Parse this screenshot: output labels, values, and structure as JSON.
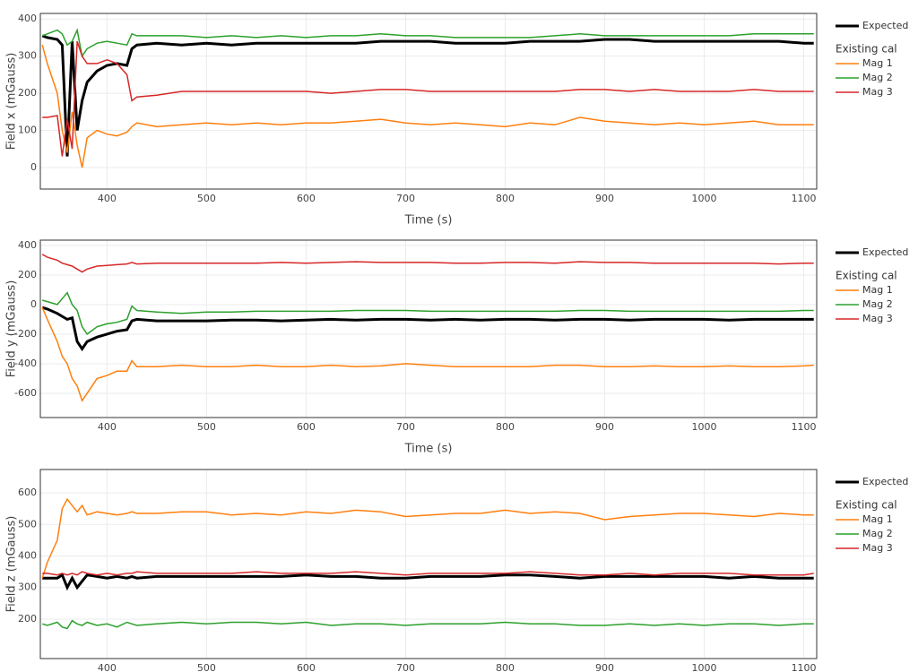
{
  "chart_data": [
    {
      "type": "line",
      "y_label": "Field x (mGauss)",
      "x_label": "Time (s)",
      "legend_title": "Existing cal",
      "grid": true,
      "xlim": [
        333,
        1113
      ],
      "xticks": [
        400,
        500,
        600,
        700,
        800,
        900,
        1000,
        1100
      ],
      "ylim": [
        -58,
        415
      ],
      "yticks": [
        0,
        100,
        200,
        300,
        400
      ],
      "x": [
        335,
        340,
        350,
        355,
        360,
        365,
        370,
        375,
        380,
        390,
        400,
        410,
        420,
        425,
        430,
        450,
        475,
        500,
        525,
        550,
        575,
        600,
        625,
        650,
        675,
        700,
        725,
        750,
        775,
        800,
        825,
        850,
        875,
        900,
        925,
        950,
        975,
        1000,
        1025,
        1050,
        1075,
        1100,
        1110
      ],
      "series": [
        {
          "name": "Expected",
          "color": "#000000",
          "width": 3,
          "values": [
            355,
            350,
            345,
            330,
            30,
            340,
            100,
            180,
            230,
            260,
            275,
            280,
            275,
            320,
            330,
            335,
            330,
            335,
            330,
            335,
            335,
            335,
            335,
            335,
            340,
            340,
            340,
            335,
            335,
            335,
            340,
            340,
            340,
            345,
            345,
            340,
            340,
            340,
            340,
            340,
            340,
            335,
            335
          ]
        },
        {
          "name": "Mag 1",
          "color": "#ff7f0e",
          "width": 1.5,
          "values": [
            330,
            280,
            200,
            100,
            40,
            150,
            60,
            0,
            80,
            100,
            90,
            85,
            95,
            110,
            120,
            110,
            115,
            120,
            115,
            120,
            115,
            120,
            120,
            125,
            130,
            120,
            115,
            120,
            115,
            110,
            120,
            115,
            135,
            125,
            120,
            115,
            120,
            115,
            120,
            125,
            115,
            115,
            115
          ]
        },
        {
          "name": "Mag 2",
          "color": "#2ca02c",
          "width": 1.5,
          "values": [
            355,
            360,
            370,
            360,
            330,
            340,
            370,
            300,
            320,
            335,
            340,
            335,
            330,
            360,
            355,
            355,
            355,
            350,
            355,
            350,
            355,
            350,
            355,
            355,
            360,
            355,
            355,
            350,
            350,
            350,
            350,
            355,
            360,
            355,
            355,
            355,
            355,
            355,
            355,
            360,
            360,
            360,
            360
          ]
        },
        {
          "name": "Mag 3",
          "color": "#d62728",
          "width": 1.5,
          "values": [
            135,
            135,
            140,
            30,
            130,
            50,
            340,
            300,
            280,
            280,
            290,
            280,
            250,
            180,
            190,
            195,
            205,
            205,
            205,
            205,
            205,
            205,
            200,
            205,
            210,
            210,
            205,
            205,
            205,
            205,
            205,
            205,
            210,
            210,
            205,
            210,
            205,
            205,
            205,
            210,
            205,
            205,
            205
          ]
        }
      ]
    },
    {
      "type": "line",
      "y_label": "Field y (mGauss)",
      "x_label": "Time (s)",
      "legend_title": "Existing cal",
      "grid": true,
      "xlim": [
        333,
        1113
      ],
      "xticks": [
        400,
        500,
        600,
        700,
        800,
        900,
        1000,
        1100
      ],
      "ylim": [
        -764,
        436
      ],
      "yticks": [
        -600,
        -400,
        -200,
        0,
        200,
        400
      ],
      "x": [
        335,
        340,
        350,
        355,
        360,
        365,
        370,
        375,
        380,
        390,
        400,
        410,
        420,
        425,
        430,
        450,
        475,
        500,
        525,
        550,
        575,
        600,
        625,
        650,
        675,
        700,
        725,
        750,
        775,
        800,
        825,
        850,
        875,
        900,
        925,
        950,
        975,
        1000,
        1025,
        1050,
        1075,
        1100,
        1110
      ],
      "series": [
        {
          "name": "Expected",
          "color": "#000000",
          "width": 3,
          "values": [
            -20,
            -30,
            -60,
            -80,
            -100,
            -90,
            -250,
            -300,
            -250,
            -220,
            -200,
            -180,
            -170,
            -110,
            -100,
            -110,
            -110,
            -110,
            -105,
            -105,
            -110,
            -105,
            -100,
            -105,
            -100,
            -100,
            -105,
            -100,
            -105,
            -100,
            -100,
            -105,
            -100,
            -100,
            -105,
            -100,
            -100,
            -100,
            -105,
            -100,
            -100,
            -100,
            -100
          ]
        },
        {
          "name": "Mag 1",
          "color": "#ff7f0e",
          "width": 1.5,
          "values": [
            -20,
            -100,
            -250,
            -350,
            -400,
            -500,
            -550,
            -650,
            -600,
            -500,
            -480,
            -450,
            -450,
            -380,
            -420,
            -420,
            -410,
            -420,
            -420,
            -410,
            -420,
            -420,
            -410,
            -420,
            -415,
            -400,
            -410,
            -420,
            -420,
            -420,
            -420,
            -410,
            -410,
            -420,
            -420,
            -415,
            -420,
            -420,
            -415,
            -420,
            -420,
            -415,
            -410
          ]
        },
        {
          "name": "Mag 2",
          "color": "#2ca02c",
          "width": 1.5,
          "values": [
            30,
            20,
            0,
            40,
            80,
            0,
            -40,
            -150,
            -200,
            -150,
            -130,
            -120,
            -100,
            -10,
            -40,
            -50,
            -60,
            -50,
            -50,
            -45,
            -45,
            -45,
            -45,
            -40,
            -40,
            -40,
            -45,
            -45,
            -45,
            -45,
            -45,
            -45,
            -40,
            -40,
            -45,
            -45,
            -45,
            -45,
            -45,
            -45,
            -45,
            -40,
            -40
          ]
        },
        {
          "name": "Mag 3",
          "color": "#d62728",
          "width": 1.5,
          "values": [
            340,
            320,
            300,
            280,
            270,
            260,
            240,
            220,
            240,
            260,
            265,
            270,
            275,
            285,
            275,
            280,
            280,
            280,
            280,
            280,
            285,
            280,
            285,
            290,
            285,
            285,
            285,
            280,
            280,
            285,
            285,
            280,
            290,
            285,
            285,
            280,
            280,
            280,
            280,
            280,
            275,
            280,
            280
          ]
        }
      ]
    },
    {
      "type": "line",
      "y_label": "Field z (mGauss)",
      "legend_title": "Existing cal",
      "grid": true,
      "xlim": [
        333,
        1113
      ],
      "xticks": [
        400,
        500,
        600,
        700,
        800,
        900,
        1000,
        1100
      ],
      "ylim": [
        75,
        674
      ],
      "yticks": [
        200,
        300,
        400,
        500,
        600
      ],
      "x": [
        335,
        340,
        350,
        355,
        360,
        365,
        370,
        375,
        380,
        390,
        400,
        410,
        420,
        425,
        430,
        450,
        475,
        500,
        525,
        550,
        575,
        600,
        625,
        650,
        675,
        700,
        725,
        750,
        775,
        800,
        825,
        850,
        875,
        900,
        925,
        950,
        975,
        1000,
        1025,
        1050,
        1075,
        1100,
        1110
      ],
      "series": [
        {
          "name": "Expected",
          "color": "#000000",
          "width": 3,
          "values": [
            330,
            330,
            330,
            340,
            300,
            330,
            300,
            320,
            340,
            335,
            330,
            335,
            330,
            335,
            330,
            335,
            335,
            335,
            335,
            335,
            335,
            340,
            335,
            335,
            330,
            330,
            335,
            335,
            335,
            340,
            340,
            335,
            330,
            335,
            335,
            335,
            335,
            335,
            330,
            335,
            330,
            330,
            330
          ]
        },
        {
          "name": "Mag 1",
          "color": "#ff7f0e",
          "width": 1.5,
          "values": [
            330,
            380,
            450,
            550,
            580,
            560,
            540,
            560,
            530,
            540,
            535,
            530,
            535,
            540,
            535,
            535,
            540,
            540,
            530,
            535,
            530,
            540,
            535,
            545,
            540,
            525,
            530,
            535,
            535,
            545,
            535,
            540,
            535,
            515,
            525,
            530,
            535,
            535,
            530,
            525,
            535,
            530,
            530
          ]
        },
        {
          "name": "Mag 2",
          "color": "#2ca02c",
          "width": 1.5,
          "values": [
            185,
            180,
            190,
            175,
            170,
            195,
            185,
            180,
            190,
            180,
            185,
            175,
            190,
            185,
            180,
            185,
            190,
            185,
            190,
            190,
            185,
            190,
            180,
            185,
            185,
            180,
            185,
            185,
            185,
            190,
            185,
            185,
            180,
            180,
            185,
            180,
            185,
            180,
            185,
            185,
            180,
            185,
            185
          ]
        },
        {
          "name": "Mag 3",
          "color": "#d62728",
          "width": 1.5,
          "values": [
            345,
            345,
            340,
            345,
            340,
            345,
            340,
            350,
            345,
            340,
            345,
            340,
            345,
            345,
            350,
            345,
            345,
            345,
            345,
            350,
            345,
            345,
            345,
            350,
            345,
            340,
            345,
            345,
            345,
            345,
            350,
            345,
            340,
            340,
            345,
            340,
            345,
            345,
            345,
            340,
            340,
            340,
            345
          ]
        }
      ]
    }
  ]
}
